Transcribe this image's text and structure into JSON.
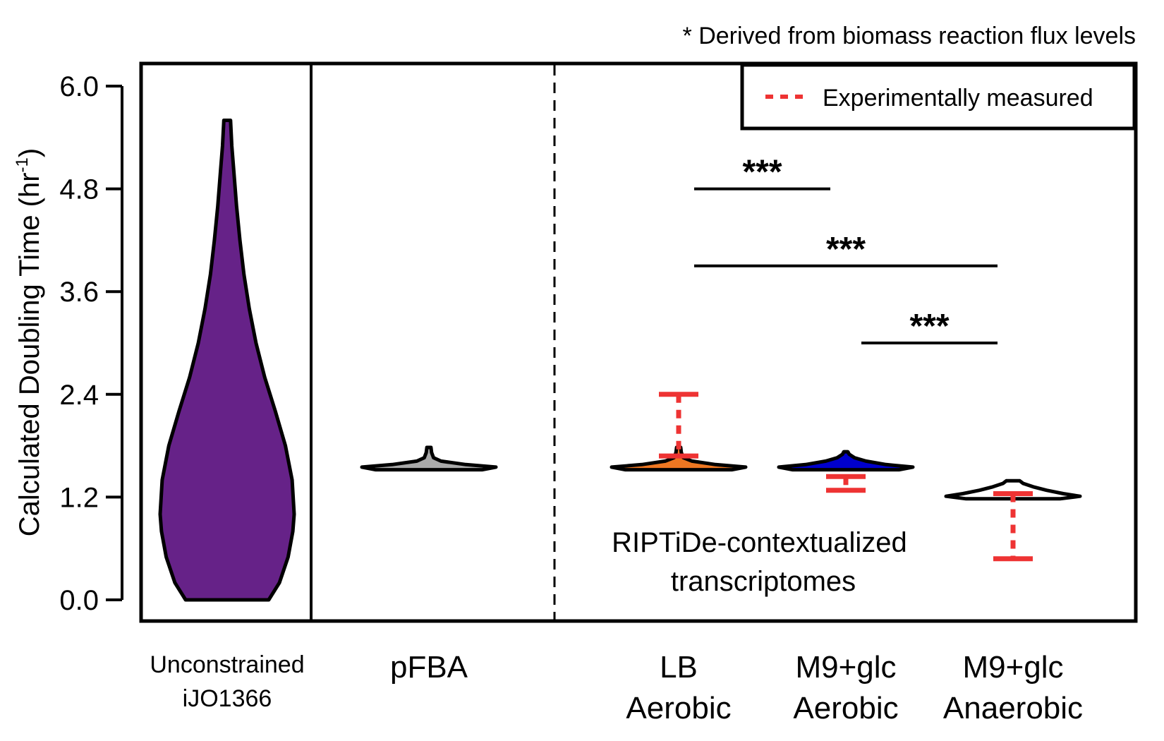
{
  "chart_data": {
    "type": "violin",
    "note": "* Derived from biomass reaction flux levels",
    "ylabel_main": "Calculated Doubling Time (hr",
    "ylabel_sup": "-1",
    "ylabel_close": ")",
    "ylim": [
      0,
      6.0
    ],
    "yticks": [
      "0.0",
      "1.2",
      "2.4",
      "3.6",
      "4.8",
      "6.0"
    ],
    "group_label": [
      "RIPTiDe-contextualized",
      "transcriptomes"
    ],
    "legend": {
      "label": "Experimentally measured",
      "color": "#ee3333",
      "position": "top-right"
    },
    "violins": [
      {
        "name": "unconstrained",
        "label": [
          "Unconstrained",
          "iJO1366"
        ],
        "color": "#662288",
        "profile": [
          [
            0.0,
            0.62
          ],
          [
            0.2,
            0.78
          ],
          [
            0.5,
            0.91
          ],
          [
            0.8,
            0.98
          ],
          [
            1.0,
            1.0
          ],
          [
            1.4,
            0.97
          ],
          [
            1.8,
            0.87
          ],
          [
            2.2,
            0.72
          ],
          [
            2.6,
            0.56
          ],
          [
            3.0,
            0.43
          ],
          [
            3.4,
            0.33
          ],
          [
            3.8,
            0.25
          ],
          [
            4.2,
            0.19
          ],
          [
            4.6,
            0.14
          ],
          [
            5.0,
            0.1
          ],
          [
            5.3,
            0.07
          ],
          [
            5.6,
            0.05
          ]
        ]
      },
      {
        "name": "pfba",
        "label": [
          "pFBA"
        ],
        "color": "#aaaaaa",
        "profile": [
          [
            1.52,
            0.8
          ],
          [
            1.55,
            1.0
          ],
          [
            1.58,
            0.55
          ],
          [
            1.62,
            0.18
          ],
          [
            1.66,
            0.07
          ],
          [
            1.72,
            0.04
          ],
          [
            1.78,
            0.03
          ]
        ]
      },
      {
        "name": "lb-aerobic",
        "label": [
          "LB",
          "Aerobic"
        ],
        "color": "#ee7722",
        "profile": [
          [
            1.52,
            0.8
          ],
          [
            1.55,
            1.0
          ],
          [
            1.58,
            0.55
          ],
          [
            1.62,
            0.2
          ],
          [
            1.66,
            0.07
          ],
          [
            1.72,
            0.04
          ],
          [
            1.78,
            0.03
          ]
        ]
      },
      {
        "name": "m9-aerobic",
        "label": [
          "M9+glc",
          "Aerobic"
        ],
        "color": "#0000cc",
        "profile": [
          [
            1.52,
            0.8
          ],
          [
            1.55,
            1.0
          ],
          [
            1.58,
            0.6
          ],
          [
            1.62,
            0.3
          ],
          [
            1.66,
            0.13
          ],
          [
            1.7,
            0.05
          ],
          [
            1.73,
            0.03
          ]
        ]
      },
      {
        "name": "m9-anaerobic",
        "label": [
          "M9+glc",
          "Anaerobic"
        ],
        "color": "#ffffff",
        "profile": [
          [
            1.18,
            0.7
          ],
          [
            1.21,
            1.0
          ],
          [
            1.24,
            0.75
          ],
          [
            1.28,
            0.5
          ],
          [
            1.32,
            0.3
          ],
          [
            1.36,
            0.15
          ],
          [
            1.39,
            0.1
          ]
        ]
      }
    ],
    "measured": [
      {
        "violin": "lb-aerobic",
        "low": 1.68,
        "high": 2.4
      },
      {
        "violin": "m9-aerobic",
        "low": 1.28,
        "high": 1.44
      },
      {
        "violin": "m9-anaerobic",
        "low": 0.48,
        "high": 1.24
      }
    ],
    "significance": [
      {
        "from": "lb-aerobic",
        "to": "m9-aerobic",
        "y": 4.8,
        "label": "***"
      },
      {
        "from": "lb-aerobic",
        "to": "m9-anaerobic",
        "y": 3.9,
        "label": "***"
      },
      {
        "from": "m9-aerobic",
        "to": "m9-anaerobic",
        "y": 3.0,
        "label": "***"
      }
    ]
  }
}
